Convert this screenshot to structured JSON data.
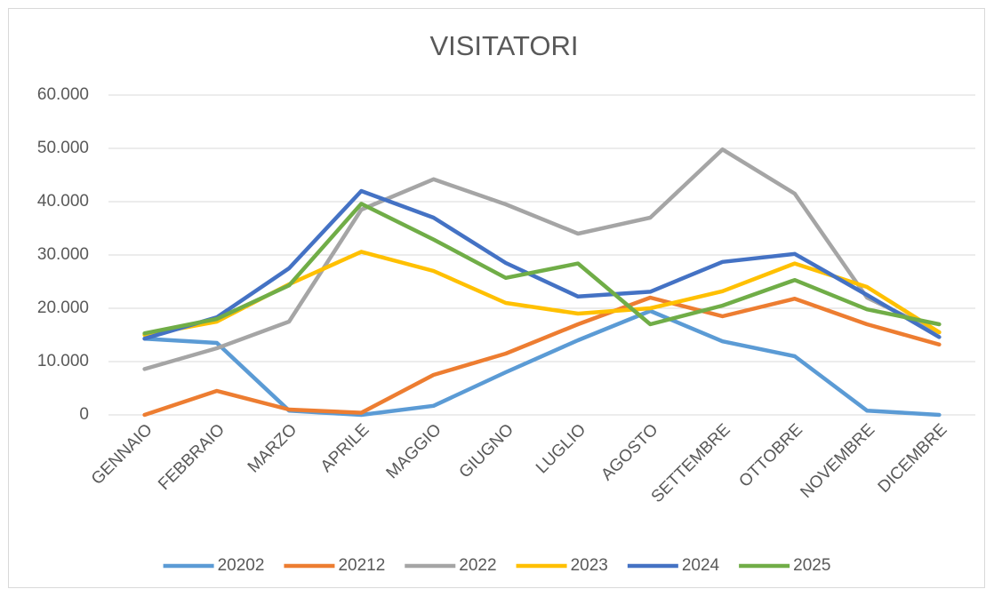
{
  "chart_data": {
    "type": "line",
    "title": "VISITATORI",
    "categories": [
      "GENNAIO",
      "FEBBRAIO",
      "MARZO",
      "APRILE",
      "MAGGIO",
      "GIUGNO",
      "LUGLIO",
      "AGOSTO",
      "SETTEMBRE",
      "OTTOBRE",
      "NOVEMBRE",
      "DICEMBRE"
    ],
    "series": [
      {
        "name": "20202",
        "color": "#5b9bd5",
        "values": [
          14300,
          13500,
          800,
          0,
          1700,
          8000,
          14000,
          19500,
          13800,
          11000,
          800,
          0
        ]
      },
      {
        "name": "20212",
        "color": "#ed7d31",
        "values": [
          0,
          4500,
          1000,
          400,
          7500,
          11500,
          17000,
          22000,
          18500,
          21800,
          17000,
          13200
        ]
      },
      {
        "name": "2022",
        "color": "#a5a5a5",
        "values": [
          8600,
          12500,
          17500,
          38500,
          44200,
          39500,
          34000,
          37000,
          49800,
          41500,
          22000,
          15500
        ]
      },
      {
        "name": "2023",
        "color": "#ffc000",
        "values": [
          15000,
          17500,
          24500,
          30600,
          27000,
          21000,
          19000,
          20000,
          23200,
          28400,
          24000,
          15500
        ]
      },
      {
        "name": "2024",
        "color": "#4472c4",
        "values": [
          14300,
          18300,
          27500,
          42000,
          37000,
          28500,
          22200,
          23100,
          28700,
          30200,
          22500,
          14600
        ]
      },
      {
        "name": "2025",
        "color": "#70ad47",
        "values": [
          15300,
          18000,
          24300,
          39600,
          32900,
          25700,
          28400,
          17000,
          20500,
          25300,
          19800,
          17000
        ]
      }
    ],
    "ylim": [
      0,
      60000
    ],
    "yticks": [
      {
        "value": 0,
        "label": "0"
      },
      {
        "value": 10000,
        "label": "10.000"
      },
      {
        "value": 20000,
        "label": "20.000"
      },
      {
        "value": 30000,
        "label": "30.000"
      },
      {
        "value": 40000,
        "label": "40.000"
      },
      {
        "value": 50000,
        "label": "50.000"
      },
      {
        "value": 60000,
        "label": "60.000"
      }
    ],
    "grid": true,
    "legend": "bottom"
  }
}
